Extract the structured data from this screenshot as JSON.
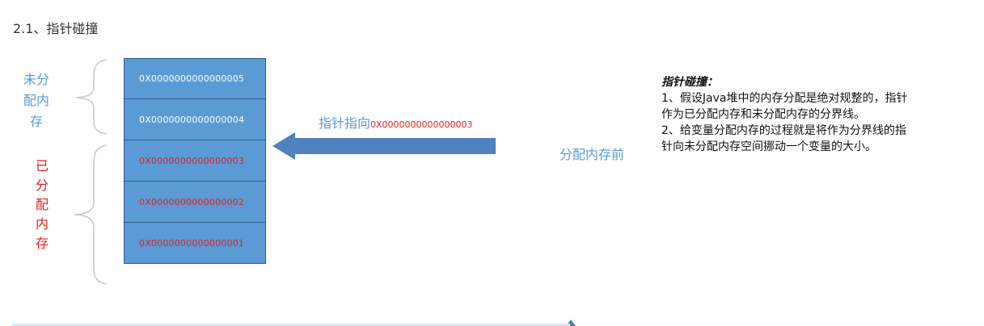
{
  "heading": "2.1、指针碰撞",
  "left_labels": {
    "unallocated": [
      "未分",
      "配内",
      "存"
    ],
    "allocated": [
      "已",
      "分",
      "配",
      "内",
      "存"
    ]
  },
  "memory_cells": [
    {
      "address": "0X0000000000000005",
      "state": "free"
    },
    {
      "address": "0X0000000000000004",
      "state": "free"
    },
    {
      "address": "0X0000000000000003",
      "state": "used"
    },
    {
      "address": "0X0000000000000002",
      "state": "used"
    },
    {
      "address": "0X0000000000000001",
      "state": "used"
    }
  ],
  "pointer": {
    "label": "指针指向",
    "address": "0X0000000000000003"
  },
  "state_label": "分配内存前",
  "note": {
    "title": "指针碰撞：",
    "lines": [
      "1、假设Java堆中的内存分配是绝对规整的，指针",
      "作为已分配内存和未分配内存的分界线。",
      "2、给变量分配内存的过程就是将作为分界线的指",
      "针向未分配内存空间挪动一个变量的大小。"
    ]
  },
  "colors": {
    "cell_fill": "#5b9bd5",
    "cell_border": "#2f5d8c",
    "free_text": "#ffffff",
    "used_text": "#e02020",
    "label_blue": "#5b9bd5",
    "label_red": "#e02020",
    "arrow": "#4f81bd",
    "bracket": "#c8c8c8"
  }
}
